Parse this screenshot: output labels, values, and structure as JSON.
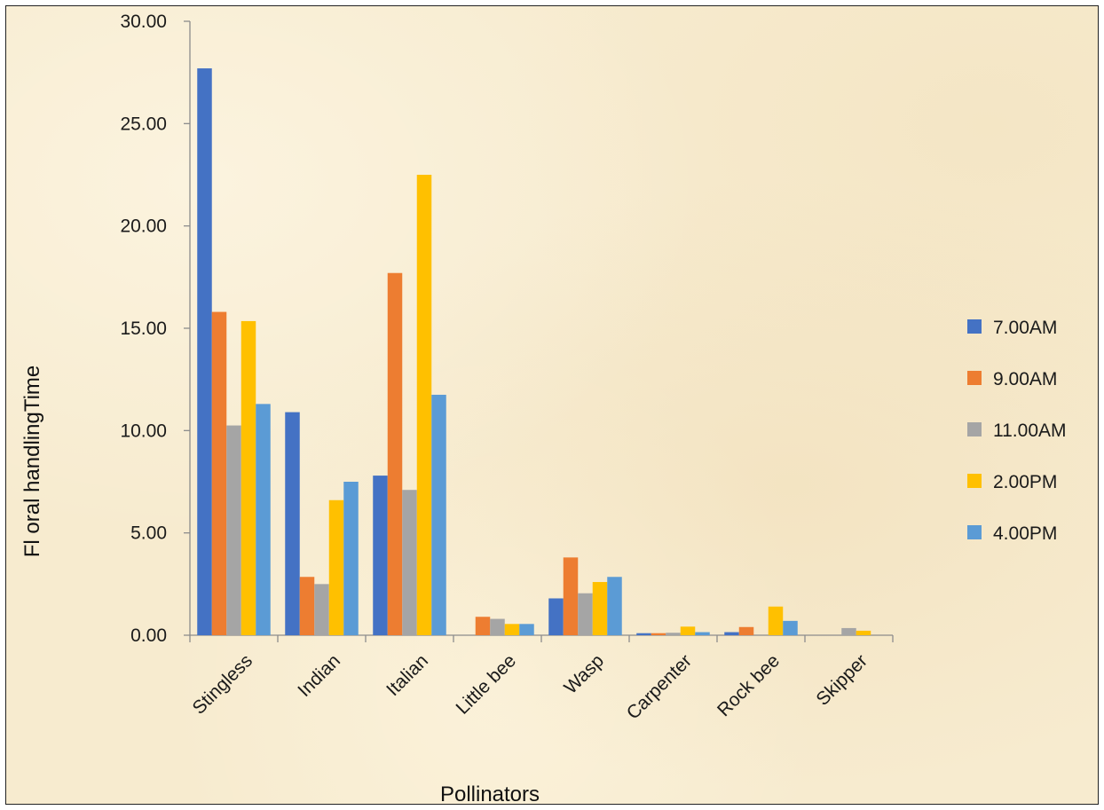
{
  "chart_data": {
    "type": "bar",
    "title": "",
    "xlabel": "Pollinators",
    "ylabel": "Fl oral handlingTime",
    "ylim": [
      0,
      30
    ],
    "ytick_labels": [
      "0.00",
      "5.00",
      "10.00",
      "15.00",
      "20.00",
      "25.00",
      "30.00"
    ],
    "categories": [
      "Stingless",
      "Indian",
      "Italian",
      "Little bee",
      "Wasp",
      "Carpenter",
      "Rock bee",
      "Skipper"
    ],
    "grid": false,
    "legend_position": "right",
    "series": [
      {
        "name": "7.00AM",
        "color": "#4472c4",
        "values": [
          27.7,
          10.9,
          7.8,
          0.0,
          1.8,
          0.1,
          0.15,
          0.0
        ]
      },
      {
        "name": "9.00AM",
        "color": "#ed7d31",
        "values": [
          15.8,
          2.85,
          17.7,
          0.9,
          3.8,
          0.1,
          0.4,
          0.0
        ]
      },
      {
        "name": "11.00AM",
        "color": "#a5a5a5",
        "values": [
          10.25,
          2.5,
          7.1,
          0.8,
          2.05,
          0.12,
          0.0,
          0.35
        ]
      },
      {
        "name": "2.00PM",
        "color": "#ffc000",
        "values": [
          15.35,
          6.6,
          22.5,
          0.55,
          2.6,
          0.42,
          1.4,
          0.22
        ]
      },
      {
        "name": "4.00PM",
        "color": "#5b9bd5",
        "values": [
          11.3,
          7.5,
          11.75,
          0.55,
          2.85,
          0.15,
          0.7,
          0.0
        ]
      }
    ]
  }
}
